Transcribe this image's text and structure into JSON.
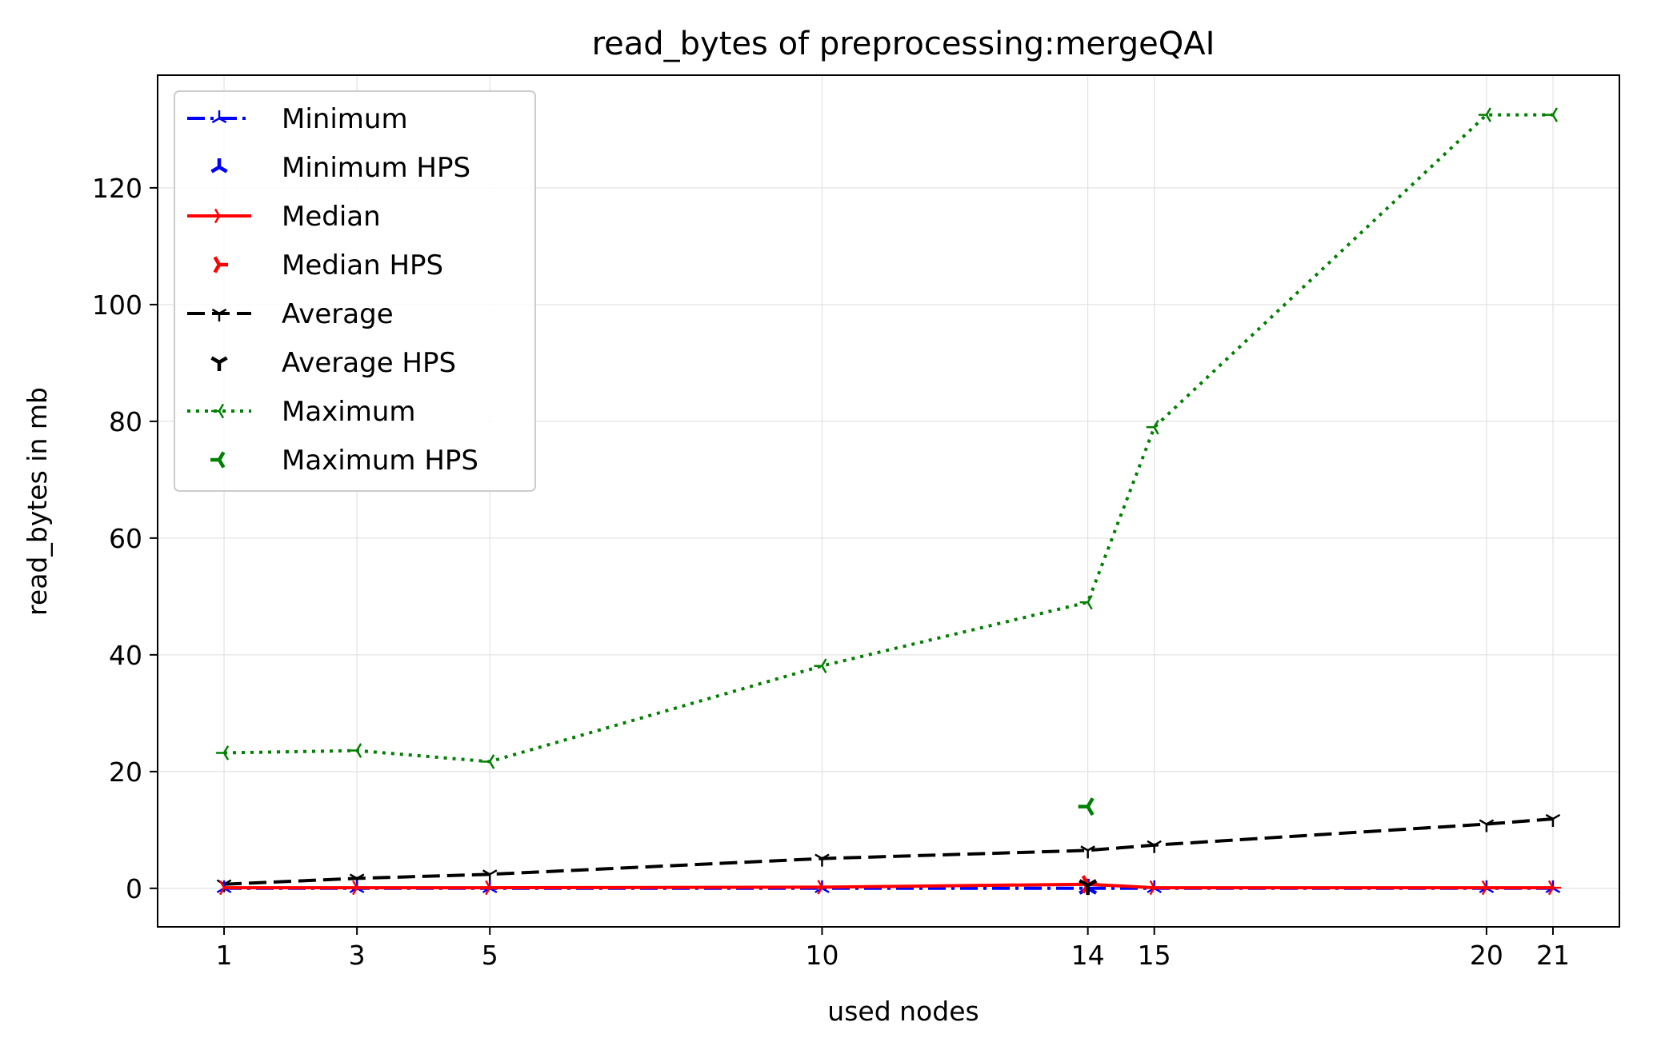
{
  "chart_data": {
    "type": "line",
    "title": "read_bytes of preprocessing:mergeQAI",
    "xlabel": "used nodes",
    "ylabel": "read_bytes in mb",
    "x": [
      1,
      3,
      5,
      10,
      14,
      15,
      20,
      21
    ],
    "xticks": [
      1,
      3,
      5,
      10,
      14,
      15,
      20,
      21
    ],
    "xlim": [
      0,
      22
    ],
    "yticks": [
      0,
      20,
      40,
      60,
      80,
      100,
      120
    ],
    "ylim": [
      -6.6,
      139.3
    ],
    "grid": true,
    "legend_position": "top-left",
    "series": [
      {
        "name": "Minimum",
        "color": "#0000ff",
        "dash": "dashdot",
        "marker": "tri_up",
        "values": [
          0.0,
          0.0,
          0.0,
          0.0,
          0.0,
          0.0,
          0.0,
          0.0
        ]
      },
      {
        "name": "Median",
        "color": "#ff0000",
        "dash": "solid",
        "marker": "tri_right",
        "values": [
          0.1,
          0.1,
          0.1,
          0.2,
          0.7,
          0.1,
          0.1,
          0.1
        ]
      },
      {
        "name": "Average",
        "color": "#000000",
        "dash": "dashed",
        "marker": "tri_down",
        "values": [
          0.7,
          1.7,
          2.4,
          5.1,
          6.5,
          7.4,
          11.0,
          11.9
        ]
      },
      {
        "name": "Maximum",
        "color": "#008000",
        "dash": "dotted",
        "marker": "tri_left",
        "values": [
          23.2,
          23.6,
          21.7,
          38.1,
          49.0,
          79.0,
          132.5,
          132.5
        ]
      }
    ],
    "hps_points": [
      {
        "name": "Minimum HPS",
        "color": "#0000ff",
        "marker": "tri_up",
        "x": 14,
        "y": 0.0
      },
      {
        "name": "Median HPS",
        "color": "#ff0000",
        "marker": "tri_right",
        "x": 14,
        "y": 0.7
      },
      {
        "name": "Average HPS",
        "color": "#000000",
        "marker": "tri_down",
        "x": 14,
        "y": 0.5
      },
      {
        "name": "Maximum HPS",
        "color": "#008000",
        "marker": "tri_left",
        "x": 14,
        "y": 14.0
      }
    ],
    "legend": [
      {
        "label": "Minimum",
        "kind": "line",
        "ref": 0
      },
      {
        "label": "Minimum HPS",
        "kind": "point",
        "ref": 0
      },
      {
        "label": "Median",
        "kind": "line",
        "ref": 1
      },
      {
        "label": "Median HPS",
        "kind": "point",
        "ref": 1
      },
      {
        "label": "Average",
        "kind": "line",
        "ref": 2
      },
      {
        "label": "Average HPS",
        "kind": "point",
        "ref": 2
      },
      {
        "label": "Maximum",
        "kind": "line",
        "ref": 3
      },
      {
        "label": "Maximum HPS",
        "kind": "point",
        "ref": 3
      }
    ]
  }
}
